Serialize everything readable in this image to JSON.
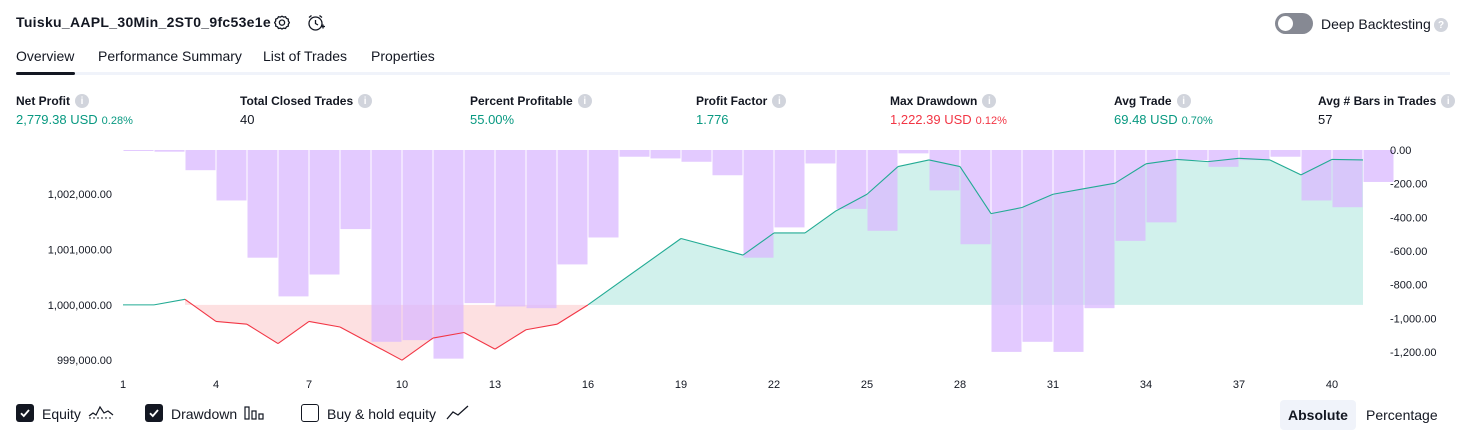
{
  "header": {
    "title": "Tuisku_AAPL_30Min_2ST0_9fc53e1e",
    "settings_icon": "gear-icon",
    "alert_icon": "add-alert-icon",
    "deep_backtesting_label": "Deep Backtesting",
    "deep_backtesting_on": false
  },
  "tabs": [
    {
      "label": "Overview",
      "active": true
    },
    {
      "label": "Performance Summary",
      "active": false
    },
    {
      "label": "List of Trades",
      "active": false
    },
    {
      "label": "Properties",
      "active": false
    }
  ],
  "stats": {
    "net_profit": {
      "label": "Net Profit",
      "value": "2,779.38 USD",
      "pct": "0.28%"
    },
    "total_closed_trades": {
      "label": "Total Closed Trades",
      "value": "40"
    },
    "percent_profitable": {
      "label": "Percent Profitable",
      "value": "55.00%"
    },
    "profit_factor": {
      "label": "Profit Factor",
      "value": "1.776"
    },
    "max_drawdown": {
      "label": "Max Drawdown",
      "value": "1,222.39 USD",
      "pct": "0.12%"
    },
    "avg_trade": {
      "label": "Avg Trade",
      "value": "69.48 USD",
      "pct": "0.70%"
    },
    "avg_bars": {
      "label": "Avg # Bars in Trades",
      "value": "57"
    }
  },
  "chart_data": {
    "type": "line",
    "equity_series": {
      "name": "Equity",
      "x": [
        1,
        2,
        3,
        4,
        5,
        6,
        7,
        8,
        9,
        10,
        11,
        12,
        13,
        14,
        15,
        16,
        19,
        21,
        22,
        23,
        24,
        25,
        26,
        27,
        28,
        29,
        30,
        31,
        32,
        33,
        34,
        35,
        36,
        37,
        38,
        39,
        40,
        41
      ],
      "values": [
        1000000,
        1000000,
        1000100,
        999700,
        999650,
        999300,
        999700,
        999600,
        999300,
        999000,
        999400,
        999500,
        999200,
        999550,
        999650,
        1000000,
        1001200,
        1000900,
        1001300,
        1001300,
        1001700,
        1002000,
        1002500,
        1002620,
        1002500,
        1001650,
        1001760,
        1002000,
        1002100,
        1002200,
        1002550,
        1002630,
        1002590,
        1002650,
        1002620,
        1002350,
        1002630,
        1002620
      ]
    },
    "drawdown_series": {
      "name": "Drawdown",
      "x": [
        1,
        2,
        3,
        4,
        5,
        6,
        7,
        8,
        9,
        10,
        11,
        12,
        13,
        14,
        15,
        16,
        17,
        18,
        19,
        20,
        21,
        22,
        23,
        24,
        25,
        26,
        27,
        28,
        29,
        30,
        31,
        32,
        33,
        34,
        35,
        36,
        37,
        38,
        39,
        40,
        41
      ],
      "values": [
        -5,
        -10,
        -120,
        -300,
        -640,
        -870,
        -740,
        -470,
        -1140,
        -1130,
        -1240,
        -910,
        -930,
        -940,
        -680,
        -520,
        -40,
        -50,
        -70,
        -150,
        -640,
        -460,
        -80,
        -350,
        -480,
        -20,
        -240,
        -560,
        -1200,
        -1140,
        -1200,
        -940,
        -540,
        -430,
        -60,
        -100,
        -60,
        -40,
        -300,
        -340,
        -190
      ]
    },
    "x_ticks": [
      1,
      4,
      7,
      10,
      13,
      16,
      19,
      22,
      25,
      28,
      31,
      34,
      37,
      40
    ],
    "left_axis": {
      "ticks": [
        999000,
        1000000,
        1001000,
        1002000
      ],
      "tick_labels": [
        "999,000.00",
        "1,000,000.00",
        "1,001,000.00",
        "1,002,000.00"
      ],
      "range": [
        998750,
        1002800
      ]
    },
    "right_axis": {
      "ticks": [
        0,
        -200,
        -400,
        -600,
        -800,
        -1000,
        -1200
      ],
      "tick_labels": [
        "0.00",
        "-200.00",
        "-400.00",
        "-600.00",
        "-800.00",
        "-1,000.00",
        "-1,200.00"
      ],
      "range": [
        -1260,
        0
      ]
    },
    "colors": {
      "drawdown_bar": "#d9b8ff",
      "equity_up_line": "#22ab94",
      "equity_down_line": "#f23645",
      "equity_up_fill": "#ace5dc",
      "equity_down_fill": "#fccbcd"
    }
  },
  "legend": {
    "equity": {
      "label": "Equity",
      "checked": true,
      "icon": "equity-line-icon"
    },
    "drawdown": {
      "label": "Drawdown",
      "checked": true,
      "icon": "bar-chart-icon"
    },
    "buy_hold": {
      "label": "Buy & hold equity",
      "checked": false,
      "icon": "line-chart-icon"
    }
  },
  "mode": {
    "absolute_label": "Absolute",
    "percentage_label": "Percentage",
    "selected": "Absolute"
  }
}
